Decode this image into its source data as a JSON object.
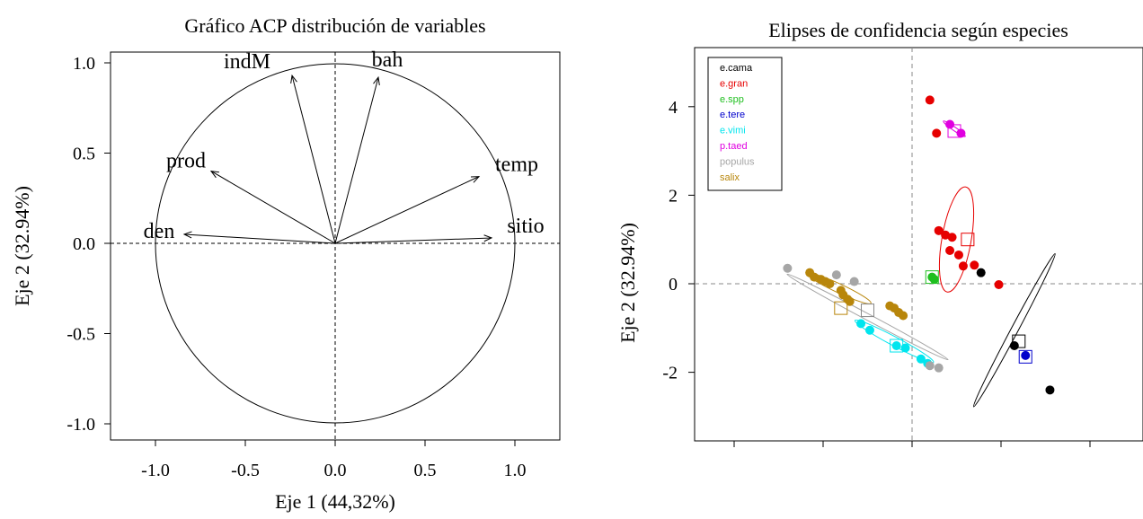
{
  "chart_data": [
    {
      "type": "scatter",
      "subtype": "pca-correlation-circle",
      "title": "Gráfico ACP distribución de variables",
      "xlabel": "Eje 1 (44,32%)",
      "ylabel": "Eje 2 (32.94%)",
      "xlim": [
        -1.25,
        1.25
      ],
      "ylim": [
        -1.1,
        1.1
      ],
      "xticks": [
        -1.0,
        -0.5,
        0.0,
        0.5,
        1.0
      ],
      "xtick_labels": [
        "-1.0",
        "-0.5",
        "0.0",
        "0.5",
        "1.0"
      ],
      "yticks": [
        -1.0,
        -0.5,
        0.0,
        0.5,
        1.0
      ],
      "ytick_labels": [
        "-1.0",
        "-0.5",
        "0.0",
        "0.5",
        "1.0"
      ],
      "circle_radius": 1.0,
      "reference_lines": "dashed at x=0 and y=0",
      "vectors": [
        {
          "name": "indM",
          "x": -0.24,
          "y": 0.93
        },
        {
          "name": "bah",
          "x": 0.24,
          "y": 0.92
        },
        {
          "name": "prod",
          "x": -0.69,
          "y": 0.4
        },
        {
          "name": "temp",
          "x": 0.8,
          "y": 0.37
        },
        {
          "name": "den",
          "x": -0.84,
          "y": 0.05
        },
        {
          "name": "sitio",
          "x": 0.87,
          "y": 0.03
        }
      ]
    },
    {
      "type": "scatter",
      "subtype": "pca-individuals-with-confidence-ellipses",
      "title": "Elipses de confidencia según especies",
      "xlabel": "",
      "ylabel": "Eje 2 (32.94%)",
      "xlim": [
        -4.4,
        5.2
      ],
      "ylim": [
        -3.5,
        5.2
      ],
      "yticks": [
        -2,
        0,
        2,
        4
      ],
      "ytick_labels": [
        "-2",
        "0",
        "2",
        "4"
      ],
      "xticks": [
        -4,
        -2,
        0,
        2,
        4
      ],
      "xtick_labels_shown": false,
      "reference_lines": "dashed at x=0 and y=0",
      "legend_position": "top-left",
      "series": [
        {
          "name": "e.cama",
          "color": "#000000",
          "points": [
            [
              2.3,
              -1.4
            ],
            [
              3.1,
              -2.4
            ],
            [
              1.55,
              0.25
            ]
          ],
          "center": [
            2.4,
            -1.3
          ],
          "ellipse": {
            "cx": 2.3,
            "cy": -1.05,
            "rx": 1.95,
            "ry": 0.08,
            "angle": -62
          }
        },
        {
          "name": "e.gran",
          "color": "#e60000",
          "points": [
            [
              0.4,
              4.15
            ],
            [
              0.55,
              3.4
            ],
            [
              0.6,
              1.2
            ],
            [
              0.75,
              1.1
            ],
            [
              0.9,
              1.05
            ],
            [
              0.85,
              0.75
            ],
            [
              1.05,
              0.65
            ],
            [
              1.15,
              0.4
            ],
            [
              1.4,
              0.42
            ],
            [
              1.95,
              -0.02
            ]
          ],
          "center": [
            1.25,
            1.0
          ],
          "ellipse": {
            "cx": 1.0,
            "cy": 1.0,
            "rx": 1.2,
            "ry": 0.33,
            "angle": -80
          }
        },
        {
          "name": "e.spp",
          "color": "#1fbf1f",
          "points": [
            [
              0.45,
              0.15
            ],
            [
              0.5,
              0.1
            ]
          ],
          "center": [
            0.45,
            0.15
          ],
          "ellipse": {
            "cx": 0.47,
            "cy": 0.12,
            "rx": 0.08,
            "ry": 0.06,
            "angle": 0
          }
        },
        {
          "name": "e.tere",
          "color": "#0000cc",
          "points": [
            [
              2.55,
              -1.62
            ]
          ],
          "center": [
            2.55,
            -1.65
          ],
          "ellipse": null
        },
        {
          "name": "e.vimi",
          "color": "#00e5ee",
          "points": [
            [
              -1.15,
              -0.9
            ],
            [
              -0.95,
              -1.05
            ],
            [
              -0.35,
              -1.4
            ],
            [
              -0.15,
              -1.45
            ],
            [
              0.2,
              -1.7
            ],
            [
              0.35,
              -1.8
            ]
          ],
          "center": [
            -0.35,
            -1.4
          ],
          "ellipse": {
            "cx": -0.4,
            "cy": -1.3,
            "rx": 1.0,
            "ry": 0.1,
            "angle": 28
          }
        },
        {
          "name": "p.taed",
          "color": "#e000e0",
          "points": [
            [
              0.85,
              3.6
            ],
            [
              1.1,
              3.4
            ]
          ],
          "center": [
            0.95,
            3.45
          ],
          "ellipse": {
            "cx": 0.95,
            "cy": 3.5,
            "rx": 0.3,
            "ry": 0.04,
            "angle": 35
          }
        },
        {
          "name": "populus",
          "color": "#a6a6a6",
          "points": [
            [
              -2.8,
              0.35
            ],
            [
              -1.7,
              0.2
            ],
            [
              -1.3,
              0.05
            ],
            [
              0.4,
              -1.85
            ],
            [
              0.6,
              -1.9
            ]
          ],
          "center": [
            -1.0,
            -0.6
          ],
          "ellipse": {
            "cx": -1.0,
            "cy": -0.75,
            "rx": 2.05,
            "ry": 0.07,
            "angle": 28
          }
        },
        {
          "name": "salix",
          "color": "#b8860b",
          "points": [
            [
              -2.3,
              0.25
            ],
            [
              -2.2,
              0.15
            ],
            [
              -2.05,
              0.1
            ],
            [
              -1.95,
              0.05
            ],
            [
              -1.85,
              0.0
            ],
            [
              -1.6,
              -0.15
            ],
            [
              -1.55,
              -0.25
            ],
            [
              -1.45,
              -0.35
            ],
            [
              -1.4,
              -0.4
            ],
            [
              -0.5,
              -0.5
            ],
            [
              -0.4,
              -0.55
            ],
            [
              -0.3,
              -0.65
            ],
            [
              -0.2,
              -0.72
            ]
          ],
          "center": [
            -1.6,
            -0.55
          ],
          "ellipse": {
            "cx": -1.65,
            "cy": -0.1,
            "rx": 0.8,
            "ry": 0.1,
            "angle": 25
          }
        }
      ]
    }
  ]
}
